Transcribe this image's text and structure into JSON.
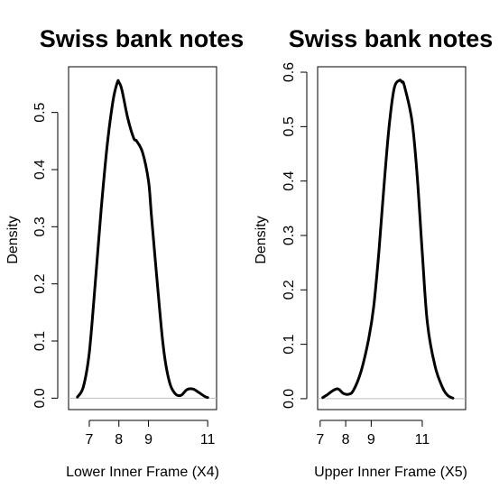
{
  "chart_data": [
    {
      "type": "line",
      "title": "Swiss bank notes",
      "xlabel": "Lower Inner Frame (X4)",
      "ylabel": "Density",
      "x_ticks": [
        7,
        8,
        9,
        11
      ],
      "y_ticks": [
        0.0,
        0.1,
        0.2,
        0.3,
        0.4,
        0.5
      ],
      "y_tick_labels": [
        "0.0",
        "0.1",
        "0.2",
        "0.3",
        "0.4",
        "0.5"
      ],
      "xlim": [
        6.3,
        11.3
      ],
      "ylim": [
        -0.02,
        0.58
      ],
      "zero_line": true,
      "series": [
        {
          "x": [
            6.6,
            6.8,
            7.0,
            7.2,
            7.4,
            7.6,
            7.8,
            7.95,
            8.0,
            8.1,
            8.3,
            8.5,
            8.6,
            8.8,
            9.0,
            9.1,
            9.3,
            9.5,
            9.7,
            9.9,
            10.1,
            10.3,
            10.5,
            10.7,
            10.9,
            11.0
          ],
          "y": [
            0.002,
            0.02,
            0.08,
            0.2,
            0.33,
            0.44,
            0.52,
            0.553,
            0.553,
            0.54,
            0.49,
            0.455,
            0.45,
            0.43,
            0.38,
            0.32,
            0.2,
            0.09,
            0.03,
            0.008,
            0.005,
            0.015,
            0.016,
            0.01,
            0.003,
            0.001
          ]
        }
      ]
    },
    {
      "type": "line",
      "title": "Swiss bank notes",
      "xlabel": "Upper Inner Frame (X5)",
      "ylabel": "Density",
      "x_ticks": [
        7,
        8,
        9,
        11
      ],
      "y_ticks": [
        0.0,
        0.1,
        0.2,
        0.3,
        0.4,
        0.5,
        0.6
      ],
      "y_tick_labels": [
        "0.0",
        "0.1",
        "0.2",
        "0.3",
        "0.4",
        "0.5",
        "0.6"
      ],
      "xlim": [
        6.9,
        12.7
      ],
      "ylim": [
        -0.02,
        0.61
      ],
      "zero_line": true,
      "series": [
        {
          "x": [
            7.1,
            7.3,
            7.5,
            7.7,
            7.9,
            8.1,
            8.3,
            8.6,
            8.9,
            9.1,
            9.3,
            9.5,
            9.7,
            9.9,
            10.1,
            10.2,
            10.3,
            10.6,
            10.8,
            11.0,
            11.2,
            11.5,
            11.8,
            12.0,
            12.2
          ],
          "y": [
            0.002,
            0.008,
            0.015,
            0.018,
            0.01,
            0.008,
            0.015,
            0.05,
            0.11,
            0.17,
            0.27,
            0.39,
            0.5,
            0.57,
            0.585,
            0.582,
            0.575,
            0.51,
            0.41,
            0.27,
            0.14,
            0.06,
            0.02,
            0.006,
            0.001
          ]
        }
      ]
    }
  ]
}
